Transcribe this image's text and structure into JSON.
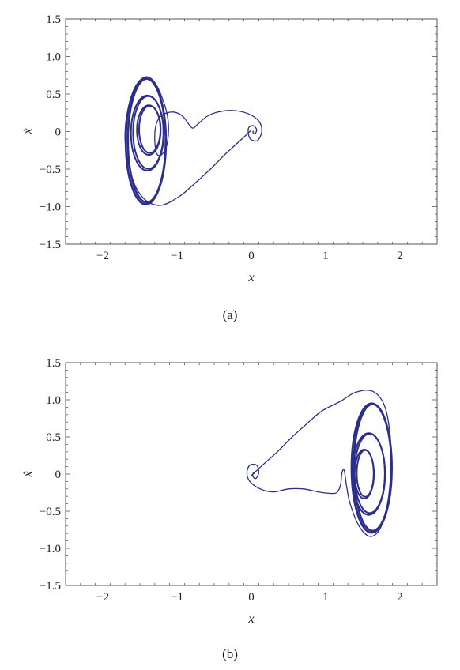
{
  "chart_data": [
    {
      "type": "line",
      "panel_label": "(a)",
      "xlabel": "x",
      "ylabel": "ẋ",
      "xlim": [
        -2.5,
        2.5
      ],
      "ylim": [
        -1.5,
        1.5
      ],
      "xticks": [
        -2,
        -1,
        0,
        1,
        2
      ],
      "yticks": [
        -1.5,
        -1.0,
        -0.5,
        0,
        0.5,
        1.0,
        1.5
      ],
      "xtick_labels": [
        "−2",
        "−1",
        "0",
        "1",
        "2"
      ],
      "ytick_labels": [
        "−1.5",
        "−1.0",
        "−0.5",
        "0",
        "0.5",
        "1.0",
        "1.5"
      ],
      "grid": false,
      "series": [
        {
          "color": "#2b2d8f",
          "points": [
            [
              0.0,
              0.02
            ],
            [
              -0.15,
              -0.12
            ],
            [
              -0.35,
              -0.3
            ],
            [
              -0.55,
              -0.5
            ],
            [
              -0.75,
              -0.68
            ],
            [
              -0.95,
              -0.85
            ],
            [
              -1.2,
              -0.98
            ],
            [
              -1.4,
              -0.93
            ],
            [
              -1.55,
              -0.75
            ],
            [
              -1.65,
              -0.45
            ],
            [
              -1.7,
              -0.1
            ],
            [
              -1.67,
              0.25
            ],
            [
              -1.58,
              0.55
            ],
            [
              -1.45,
              0.72
            ],
            [
              -1.32,
              0.68
            ],
            [
              -1.2,
              0.45
            ],
            [
              -1.12,
              0.15
            ],
            [
              -1.13,
              -0.15
            ],
            [
              -1.2,
              -0.3
            ],
            [
              -1.27,
              -0.3
            ],
            [
              -1.3,
              -0.12
            ],
            [
              -1.28,
              0.1
            ],
            [
              -1.2,
              0.22
            ],
            [
              -1.05,
              0.26
            ],
            [
              -0.92,
              0.2
            ],
            [
              -0.8,
              0.05
            ],
            [
              -0.72,
              0.1
            ],
            [
              -0.6,
              0.2
            ],
            [
              -0.45,
              0.26
            ],
            [
              -0.25,
              0.28
            ],
            [
              -0.05,
              0.24
            ],
            [
              0.1,
              0.14
            ],
            [
              0.14,
              0.0
            ],
            [
              0.08,
              -0.12
            ],
            [
              -0.02,
              -0.09
            ],
            [
              -0.04,
              0.04
            ],
            [
              0.02,
              0.08
            ],
            [
              0.07,
              0.03
            ],
            [
              0.05,
              -0.03
            ],
            [
              0.02,
              -0.01
            ],
            [
              0.03,
              0.01
            ]
          ]
        }
      ],
      "attractor_rings": [
        {
          "center": [
            -1.42,
            -0.13
          ],
          "rx": 0.27,
          "ry": 0.84,
          "color": "#2b2d8f"
        },
        {
          "center": [
            -1.4,
            -0.02
          ],
          "rx": 0.22,
          "ry": 0.5,
          "color": "#2b2d8f"
        },
        {
          "center": [
            -1.38,
            0.02
          ],
          "rx": 0.16,
          "ry": 0.33,
          "color": "#2b2d8f"
        }
      ]
    },
    {
      "type": "line",
      "panel_label": "(b)",
      "xlabel": "x",
      "ylabel": "ẋ",
      "xlim": [
        -2.5,
        2.5
      ],
      "ylim": [
        -1.5,
        1.5
      ],
      "xticks": [
        -2,
        -1,
        0,
        1,
        2
      ],
      "yticks": [
        -1.5,
        -1.0,
        -0.5,
        0,
        0.5,
        1.0,
        1.5
      ],
      "xtick_labels": [
        "−2",
        "−1",
        "0",
        "1",
        "2"
      ],
      "ytick_labels": [
        "−1.5",
        "−1.0",
        "−0.5",
        "0",
        "0.5",
        "1.0",
        "1.5"
      ],
      "grid": false,
      "series": [
        {
          "color": "#2b2d8f",
          "points": [
            [
              0.0,
              -0.02
            ],
            [
              0.15,
              0.12
            ],
            [
              0.35,
              0.3
            ],
            [
              0.55,
              0.5
            ],
            [
              0.75,
              0.68
            ],
            [
              0.95,
              0.85
            ],
            [
              1.2,
              0.98
            ],
            [
              1.4,
              1.1
            ],
            [
              1.62,
              1.12
            ],
            [
              1.78,
              0.95
            ],
            [
              1.86,
              0.6
            ],
            [
              1.88,
              0.15
            ],
            [
              1.84,
              -0.35
            ],
            [
              1.74,
              -0.72
            ],
            [
              1.6,
              -0.84
            ],
            [
              1.45,
              -0.7
            ],
            [
              1.33,
              -0.4
            ],
            [
              1.28,
              -0.15
            ],
            [
              1.25,
              0.05
            ],
            [
              1.22,
              0.02
            ],
            [
              1.2,
              -0.15
            ],
            [
              1.15,
              -0.25
            ],
            [
              1.05,
              -0.26
            ],
            [
              0.9,
              -0.24
            ],
            [
              0.7,
              -0.2
            ],
            [
              0.5,
              -0.2
            ],
            [
              0.3,
              -0.24
            ],
            [
              0.12,
              -0.2
            ],
            [
              -0.02,
              -0.1
            ],
            [
              -0.06,
              0.02
            ],
            [
              -0.02,
              0.12
            ],
            [
              0.07,
              0.12
            ],
            [
              0.1,
              0.02
            ],
            [
              0.06,
              -0.06
            ],
            [
              0.02,
              -0.03
            ],
            [
              0.03,
              0.02
            ],
            [
              0.05,
              0.0
            ]
          ]
        }
      ],
      "attractor_rings": [
        {
          "center": [
            1.62,
            0.08
          ],
          "rx": 0.27,
          "ry": 0.87,
          "color": "#2b2d8f"
        },
        {
          "center": [
            1.58,
            0.0
          ],
          "rx": 0.22,
          "ry": 0.55,
          "color": "#2b2d8f"
        },
        {
          "center": [
            1.52,
            0.0
          ],
          "rx": 0.13,
          "ry": 0.33,
          "color": "#2b2d8f"
        }
      ]
    }
  ]
}
